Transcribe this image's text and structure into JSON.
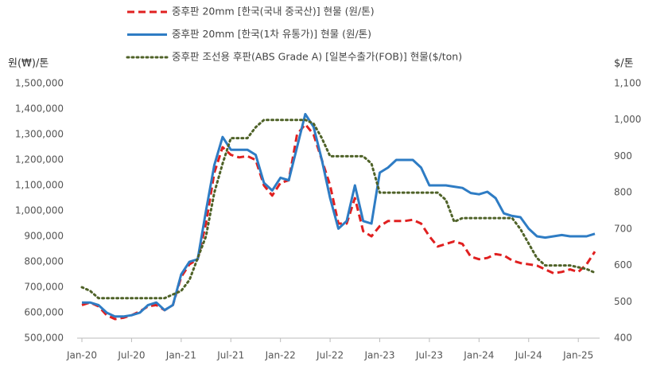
{
  "chart_data": {
    "type": "line",
    "y_axis_label": "원(₩)/톤",
    "y2_axis_label": "$/톤",
    "categories": [
      "Jan-20",
      null,
      null,
      null,
      null,
      null,
      "Jul-20",
      null,
      null,
      null,
      null,
      null,
      "Jan-21",
      null,
      null,
      null,
      null,
      null,
      "Jul-21",
      null,
      null,
      null,
      null,
      null,
      "Jan-22",
      null,
      null,
      null,
      null,
      null,
      "Jul-22",
      null,
      null,
      null,
      null,
      null,
      "Jan-23",
      null,
      null,
      null,
      null,
      null,
      "Jul-23",
      null,
      null,
      null,
      null,
      null,
      "Jan-24",
      null,
      null,
      null,
      null,
      null,
      "Jul-24",
      null,
      null,
      null,
      null,
      null,
      "Jan-25",
      null,
      null
    ],
    "ylim": [
      500000,
      1500000
    ],
    "yticks": [
      {
        "value": 500000,
        "label": "500,000"
      },
      {
        "value": 600000,
        "label": "600,000"
      },
      {
        "value": 700000,
        "label": "700,000"
      },
      {
        "value": 800000,
        "label": "800,000"
      },
      {
        "value": 900000,
        "label": "900,000"
      },
      {
        "value": 1000000,
        "label": "1,000,000"
      },
      {
        "value": 1100000,
        "label": "1,100,000"
      },
      {
        "value": 1200000,
        "label": "1,200,000"
      },
      {
        "value": 1300000,
        "label": "1,300,000"
      },
      {
        "value": 1400000,
        "label": "1,400,000"
      },
      {
        "value": 1500000,
        "label": "1,500,000"
      }
    ],
    "y2lim": [
      400,
      1100
    ],
    "y2ticks": [
      400,
      500,
      600,
      700,
      800,
      900,
      {
        "value": 1000,
        "label": "1,000"
      },
      {
        "value": 1100,
        "label": "1,100"
      }
    ],
    "series": [
      {
        "name": "중후판 20mm [한국(국내 중국산)] 현물 (원/톤)",
        "color": "#e02020",
        "dash": "dashed",
        "values": [
          630000,
          640000,
          625000,
          590000,
          575000,
          580000,
          590000,
          605000,
          625000,
          630000,
          610000,
          630000,
          740000,
          790000,
          810000,
          950000,
          1150000,
          1250000,
          1220000,
          1210000,
          1215000,
          1200000,
          1100000,
          1060000,
          1110000,
          1120000,
          1300000,
          1340000,
          1300000,
          1200000,
          1100000,
          950000,
          950000,
          1050000,
          920000,
          900000,
          940000,
          960000,
          960000,
          960000,
          965000,
          950000,
          900000,
          860000,
          870000,
          880000,
          870000,
          820000,
          810000,
          815000,
          830000,
          825000,
          805000,
          795000,
          790000,
          785000,
          770000,
          755000,
          760000,
          770000,
          760000,
          790000,
          840000
        ]
      },
      {
        "name": "중후판 20mm [한국(1차 유통가)] 현물 (원/톤)",
        "color": "#2e7cc4",
        "dash": "solid",
        "values": [
          640000,
          640000,
          630000,
          600000,
          585000,
          585000,
          590000,
          600000,
          630000,
          640000,
          610000,
          630000,
          750000,
          800000,
          810000,
          1000000,
          1180000,
          1290000,
          1240000,
          1240000,
          1240000,
          1220000,
          1110000,
          1080000,
          1130000,
          1120000,
          1250000,
          1380000,
          1330000,
          1200000,
          1050000,
          930000,
          960000,
          1100000,
          960000,
          950000,
          1150000,
          1170000,
          1200000,
          1200000,
          1200000,
          1170000,
          1100000,
          1100000,
          1100000,
          1095000,
          1090000,
          1070000,
          1065000,
          1075000,
          1050000,
          990000,
          980000,
          975000,
          930000,
          900000,
          895000,
          900000,
          905000,
          900000,
          900000,
          900000,
          910000
        ]
      },
      {
        "name": "중후판 조선용 후판(ABS Grade A) [일본수출가(FOB)] 현물($/ton)",
        "color": "#4f6228",
        "dash": "dotted",
        "axis": "y2",
        "values": [
          540,
          530,
          510,
          510,
          510,
          510,
          510,
          510,
          510,
          510,
          510,
          520,
          530,
          560,
          620,
          680,
          800,
          880,
          950,
          950,
          950,
          980,
          1000,
          1000,
          1000,
          1000,
          1000,
          1000,
          990,
          950,
          900,
          900,
          900,
          900,
          900,
          880,
          800,
          800,
          800,
          800,
          800,
          800,
          800,
          800,
          780,
          720,
          730,
          730,
          730,
          730,
          730,
          730,
          730,
          700,
          660,
          620,
          600,
          600,
          600,
          600,
          595,
          590,
          580
        ]
      }
    ]
  }
}
